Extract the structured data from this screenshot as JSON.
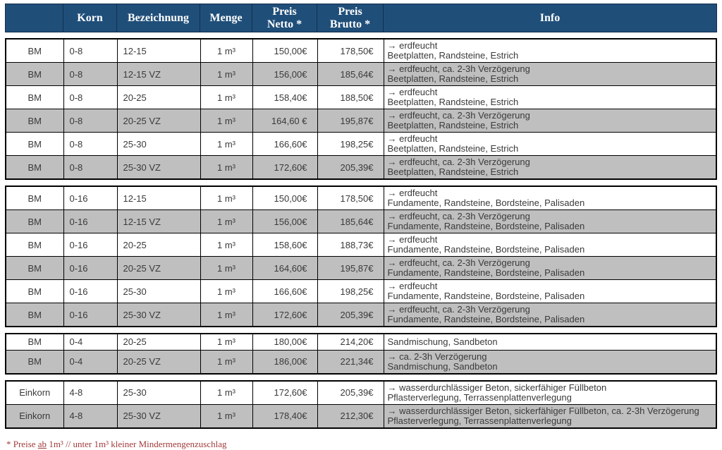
{
  "colors": {
    "header_bg": "#1f4e79",
    "header_text": "#ffffff",
    "row_bg": "#ffffff",
    "row_alt_bg": "#bfbfbf",
    "border": "#000000",
    "footnote_text": "#a23b3c"
  },
  "table": {
    "headers": [
      "",
      "Korn",
      "Bezeichnung",
      "Menge",
      "Preis\nNetto *",
      "Preis\nBrutto *",
      "Info"
    ]
  },
  "groups": [
    {
      "rows": [
        {
          "type": "BM",
          "korn": "0-8",
          "bezeichnung": "12-15",
          "menge": "1 m³",
          "netto": "150,00€",
          "brutto": "178,50€",
          "info": "→ erdfeucht\nBeetplatten, Randsteine, Estrich"
        },
        {
          "type": "BM",
          "korn": "0-8",
          "bezeichnung": "12-15 VZ",
          "menge": "1 m³",
          "netto": "156,00€",
          "brutto": "185,64€",
          "info": "→ erdfeucht, ca. 2-3h Verzögerung\nBeetplatten, Randsteine, Estrich"
        },
        {
          "type": "BM",
          "korn": "0-8",
          "bezeichnung": "20-25",
          "menge": "1 m³",
          "netto": "158,40€",
          "brutto": "188,50€",
          "info": "→ erdfeucht\nBeetplatten, Randsteine, Estrich"
        },
        {
          "type": "BM",
          "korn": "0-8",
          "bezeichnung": "20-25 VZ",
          "menge": "1 m³",
          "netto": "164,60 €",
          "brutto": "195,87€",
          "info": "→ erdfeucht, ca. 2-3h Verzögerung\nBeetplatten, Randsteine, Estrich"
        },
        {
          "type": "BM",
          "korn": "0-8",
          "bezeichnung": "25-30",
          "menge": "1 m³",
          "netto": "166,60€",
          "brutto": "198,25€",
          "info": "→ erdfeucht\nBeetplatten, Randsteine, Estrich"
        },
        {
          "type": "BM",
          "korn": "0-8",
          "bezeichnung": "25-30 VZ",
          "menge": "1 m³",
          "netto": "172,60€",
          "brutto": "205,39€",
          "info": "→ erdfeucht, ca. 2-3h Verzögerung\nBeetplatten, Randsteine, Estrich"
        }
      ]
    },
    {
      "rows": [
        {
          "type": "BM",
          "korn": "0-16",
          "bezeichnung": "12-15",
          "menge": "1 m³",
          "netto": "150,00€",
          "brutto": "178,50€",
          "info": "→ erdfeucht\nFundamente, Randsteine, Bordsteine, Palisaden"
        },
        {
          "type": "BM",
          "korn": "0-16",
          "bezeichnung": "12-15 VZ",
          "menge": "1 m³",
          "netto": "156,00€",
          "brutto": "185,64€",
          "info": "→ erdfeucht, ca. 2-3h Verzögerung\nFundamente, Randsteine, Bordsteine, Palisaden"
        },
        {
          "type": "BM",
          "korn": "0-16",
          "bezeichnung": "20-25",
          "menge": "1 m³",
          "netto": "158,60€",
          "brutto": "188,73€",
          "info": "→ erdfeucht\nFundamente, Randsteine, Bordsteine, Palisaden"
        },
        {
          "type": "BM",
          "korn": "0-16",
          "bezeichnung": "20-25 VZ",
          "menge": "1 m³",
          "netto": "164,60€",
          "brutto": "195,87€",
          "info": "→ erdfeucht, ca. 2-3h Verzögerung\nFundamente, Randsteine, Bordsteine, Palisaden"
        },
        {
          "type": "BM",
          "korn": "0-16",
          "bezeichnung": "25-30",
          "menge": "1 m³",
          "netto": "166,60€",
          "brutto": "198,25€",
          "info": "→ erdfeucht\nFundamente, Randsteine, Bordsteine, Palisaden"
        },
        {
          "type": "BM",
          "korn": "0-16",
          "bezeichnung": "25-30 VZ",
          "menge": "1 m³",
          "netto": "172,60€",
          "brutto": "205,39€",
          "info": "→ erdfeucht, ca. 2-3h Verzögerung\nFundamente, Randsteine, Bordsteine, Palisaden"
        }
      ]
    },
    {
      "rows": [
        {
          "type": "BM",
          "korn": "0-4",
          "bezeichnung": "20-25",
          "menge": "1 m³",
          "netto": "180,00€",
          "brutto": "214,20€",
          "info": "Sandmischung, Sandbeton"
        },
        {
          "type": "BM",
          "korn": "0-4",
          "bezeichnung": "20-25 VZ",
          "menge": "1 m³",
          "netto": "186,00€",
          "brutto": "221,34€",
          "info": "→ ca. 2-3h Verzögerung\nSandmischung, Sandbeton"
        }
      ]
    },
    {
      "rows": [
        {
          "type": "Einkorn",
          "korn": "4-8",
          "bezeichnung": "25-30",
          "menge": "1 m³",
          "netto": "172,60€",
          "brutto": "205,39€",
          "info": "→ wasserdurchlässiger Beton, sickerfähiger Füllbeton\nPflasterverlegung, Terrassenplattenverlegung"
        },
        {
          "type": "Einkorn",
          "korn": "4-8",
          "bezeichnung": "25-30 VZ",
          "menge": "1 m³",
          "netto": "178,40€",
          "brutto": "212,30€",
          "info": "→ wasserdurchlässiger Beton, sickerfähiger Füllbeton, ca. 2-3h Verzögerung\nPflasterverlegung, Terrassenplattenverlegung"
        }
      ]
    }
  ],
  "footnote": {
    "prefix": "* Preise ",
    "underlined": "ab",
    "suffix": " 1m³ // unter 1m³ kleiner Mindermengenzuschlag"
  }
}
